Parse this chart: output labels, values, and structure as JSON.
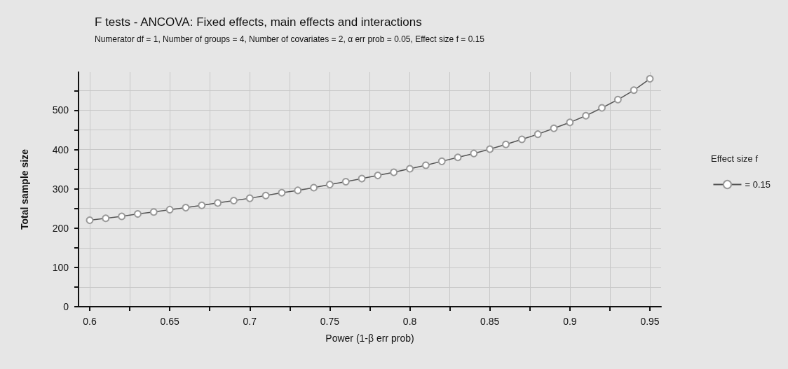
{
  "chart_data": {
    "type": "line",
    "title": "F tests - ANCOVA: Fixed effects, main effects and interactions",
    "subtitle": "Numerator df = 1, Number of groups = 4, Number of covariates = 2, α err prob = 0.05, Effect size f = 0.15",
    "xlabel": "Power (1-β err prob)",
    "ylabel": "Total sample size",
    "legend_title": "Effect size f",
    "x": [
      0.6,
      0.61,
      0.62,
      0.63,
      0.64,
      0.65,
      0.66,
      0.67,
      0.68,
      0.69,
      0.7,
      0.71,
      0.72,
      0.73,
      0.74,
      0.75,
      0.76,
      0.77,
      0.78,
      0.79,
      0.8,
      0.81,
      0.82,
      0.83,
      0.84,
      0.85,
      0.86,
      0.87,
      0.88,
      0.89,
      0.9,
      0.91,
      0.92,
      0.93,
      0.94,
      0.95
    ],
    "series": [
      {
        "name": "= 0.15",
        "color": "#555555",
        "values": [
          220,
          225,
          230,
          236,
          241,
          247,
          252,
          258,
          264,
          270,
          276,
          283,
          290,
          296,
          303,
          311,
          318,
          326,
          334,
          342,
          351,
          360,
          370,
          380,
          390,
          401,
          413,
          426,
          439,
          454,
          469,
          486,
          506,
          527,
          551,
          580
        ]
      }
    ],
    "xlim": [
      0.593,
      0.957
    ],
    "xticks": [
      0.6,
      {
        "value": 0.625,
        "label": null
      },
      0.65,
      {
        "value": 0.675,
        "label": null
      },
      0.7,
      {
        "value": 0.725,
        "label": null
      },
      0.75,
      {
        "value": 0.775,
        "label": null
      },
      0.8,
      {
        "value": 0.825,
        "label": null
      },
      0.85,
      {
        "value": 0.875,
        "label": null
      },
      0.9,
      {
        "value": 0.925,
        "label": null
      },
      0.95
    ],
    "ylim": [
      0,
      597
    ],
    "yticks": [
      0,
      {
        "value": 50,
        "label": null
      },
      100,
      {
        "value": 150,
        "label": null
      },
      200,
      {
        "value": 250,
        "label": null
      },
      300,
      {
        "value": 350,
        "label": null
      },
      400,
      {
        "value": 450,
        "label": null
      },
      500,
      {
        "value": 550,
        "label": null
      }
    ],
    "grid": true,
    "legend": "right",
    "marker": "circle",
    "line_style": "solid"
  }
}
